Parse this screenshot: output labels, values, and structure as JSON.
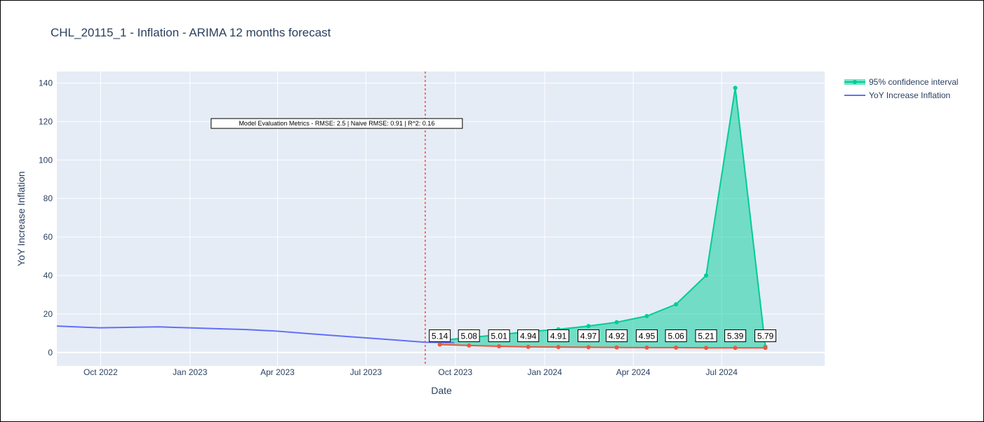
{
  "chart_data": {
    "type": "line",
    "title": "CHL_20115_1 - Inflation - ARIMA 12 months forecast",
    "xlabel": "Date",
    "ylabel": "YoY Increase Inflation",
    "x_ticks": [
      "Oct 2022",
      "Jan 2023",
      "Apr 2023",
      "Jul 2023",
      "Oct 2023",
      "Jan 2024",
      "Apr 2024",
      "Jul 2024"
    ],
    "y_ticks": [
      0,
      20,
      40,
      60,
      80,
      100,
      120,
      140
    ],
    "xlim": [
      "2022-08-17",
      "2024-10-15"
    ],
    "ylim": [
      -7,
      146
    ],
    "grid": true,
    "legend_position": "top-right",
    "series": [
      {
        "name": "YoY Increase Inflation",
        "color": "#636efa",
        "mode": "line",
        "x": [
          "2022-08-17",
          "2022-09-30",
          "2022-11-30",
          "2022-12-31",
          "2023-01-31",
          "2023-02-28",
          "2023-03-31",
          "2023-04-30",
          "2023-05-31",
          "2023-06-30",
          "2023-07-31",
          "2023-08-31",
          "2023-09-30"
        ],
        "y": [
          13.7,
          12.8,
          13.3,
          12.8,
          12.3,
          11.9,
          11.1,
          9.9,
          8.7,
          7.6,
          6.5,
          5.3,
          5.1
        ]
      },
      {
        "name": "95% confidence interval",
        "color": "#00cc96",
        "mode": "lines+markers, filled to lower bound",
        "x": [
          "2023-09-15",
          "2023-10-15",
          "2023-11-15",
          "2023-12-15",
          "2024-01-15",
          "2024-02-15",
          "2024-03-15",
          "2024-04-15",
          "2024-05-15",
          "2024-06-15",
          "2024-07-15",
          "2024-08-15"
        ],
        "y": [
          6.2,
          7.7,
          9.2,
          10.8,
          12.0,
          13.7,
          15.7,
          18.9,
          25.0,
          40.0,
          137.5,
          3.0
        ]
      },
      {
        "color": "#ef553b",
        "mode": "lines+markers",
        "x": [
          "2023-09-15",
          "2023-10-15",
          "2023-11-15",
          "2023-12-15",
          "2024-01-15",
          "2024-02-15",
          "2024-03-15",
          "2024-04-15",
          "2024-05-15",
          "2024-06-15",
          "2024-07-15",
          "2024-08-15"
        ],
        "y": [
          4.1,
          3.6,
          3.2,
          2.9,
          2.8,
          2.7,
          2.6,
          2.5,
          2.5,
          2.4,
          2.4,
          2.4
        ]
      }
    ],
    "data_labels": [
      {
        "x": "2023-09-15",
        "text": "5.14"
      },
      {
        "x": "2023-10-15",
        "text": "5.08"
      },
      {
        "x": "2023-11-15",
        "text": "5.01"
      },
      {
        "x": "2023-12-15",
        "text": "4.94"
      },
      {
        "x": "2024-01-15",
        "text": "4.91"
      },
      {
        "x": "2024-02-15",
        "text": "4.97"
      },
      {
        "x": "2024-03-15",
        "text": "4.92"
      },
      {
        "x": "2024-04-15",
        "text": "4.95"
      },
      {
        "x": "2024-05-15",
        "text": "5.06"
      },
      {
        "x": "2024-06-15",
        "text": "5.21"
      },
      {
        "x": "2024-07-15",
        "text": "5.39"
      },
      {
        "x": "2024-08-15",
        "text": "5.79"
      }
    ],
    "data_label_y": 8.5,
    "vline": {
      "x": "2023-08-31",
      "color": "#ef553b"
    },
    "annotation": {
      "text": "Model Evaluation Metrics - RMSE: 2.5 | Naive RMSE: 0.91 | R^2: 0.16",
      "x": "2023-06-01",
      "y": 119
    },
    "legend": [
      {
        "name": "95% confidence interval",
        "color": "#00cc96",
        "symbol": "line-marker-fill"
      },
      {
        "name": "YoY Increase Inflation",
        "color": "#636efa",
        "symbol": "line"
      }
    ]
  }
}
